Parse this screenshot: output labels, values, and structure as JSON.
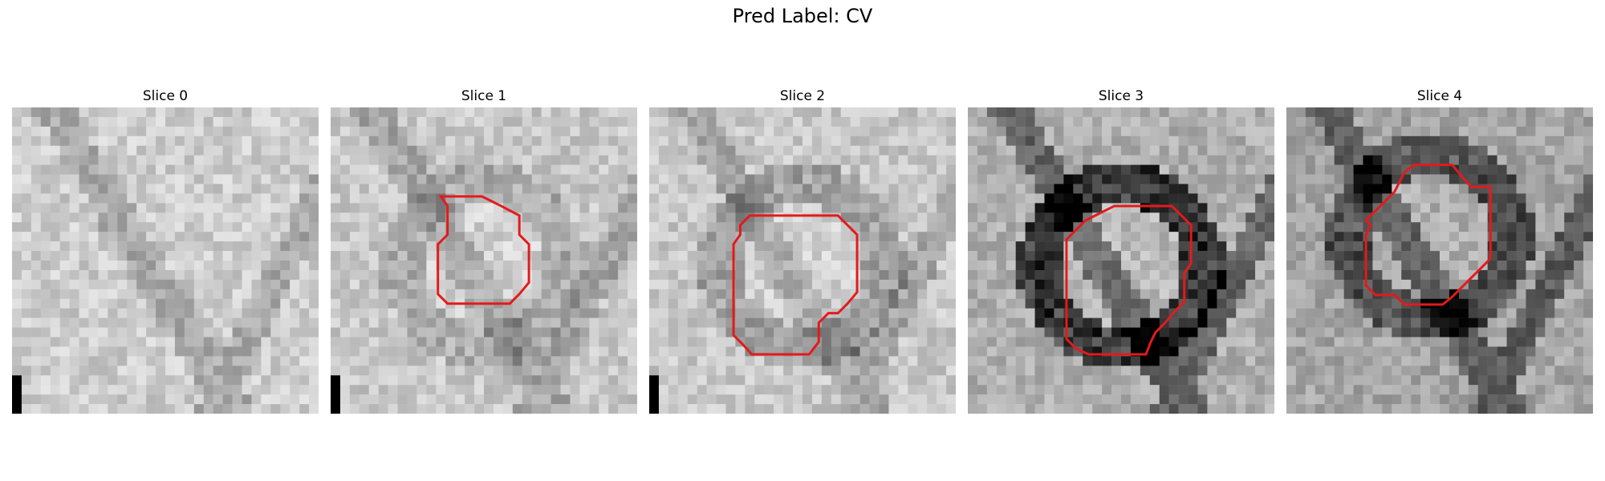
{
  "figure": {
    "title": "Pred Label: CV"
  },
  "panels": [
    {
      "title": "Slice 0",
      "scale_bar": true,
      "contour": false,
      "base_gray": 205,
      "ring": 0
    },
    {
      "title": "Slice 1",
      "scale_bar": true,
      "contour": true,
      "base_gray": 200,
      "ring": 30
    },
    {
      "title": "Slice 2",
      "scale_bar": true,
      "contour": true,
      "base_gray": 200,
      "ring": 40
    },
    {
      "title": "Slice 3",
      "scale_bar": false,
      "contour": true,
      "base_gray": 175,
      "ring": 130
    },
    {
      "title": "Slice 4",
      "scale_bar": false,
      "contour": true,
      "base_gray": 165,
      "ring": 90
    }
  ],
  "colors": {
    "contour": "#e31a1c",
    "scale_bar": "#000000",
    "background": "#ffffff"
  }
}
